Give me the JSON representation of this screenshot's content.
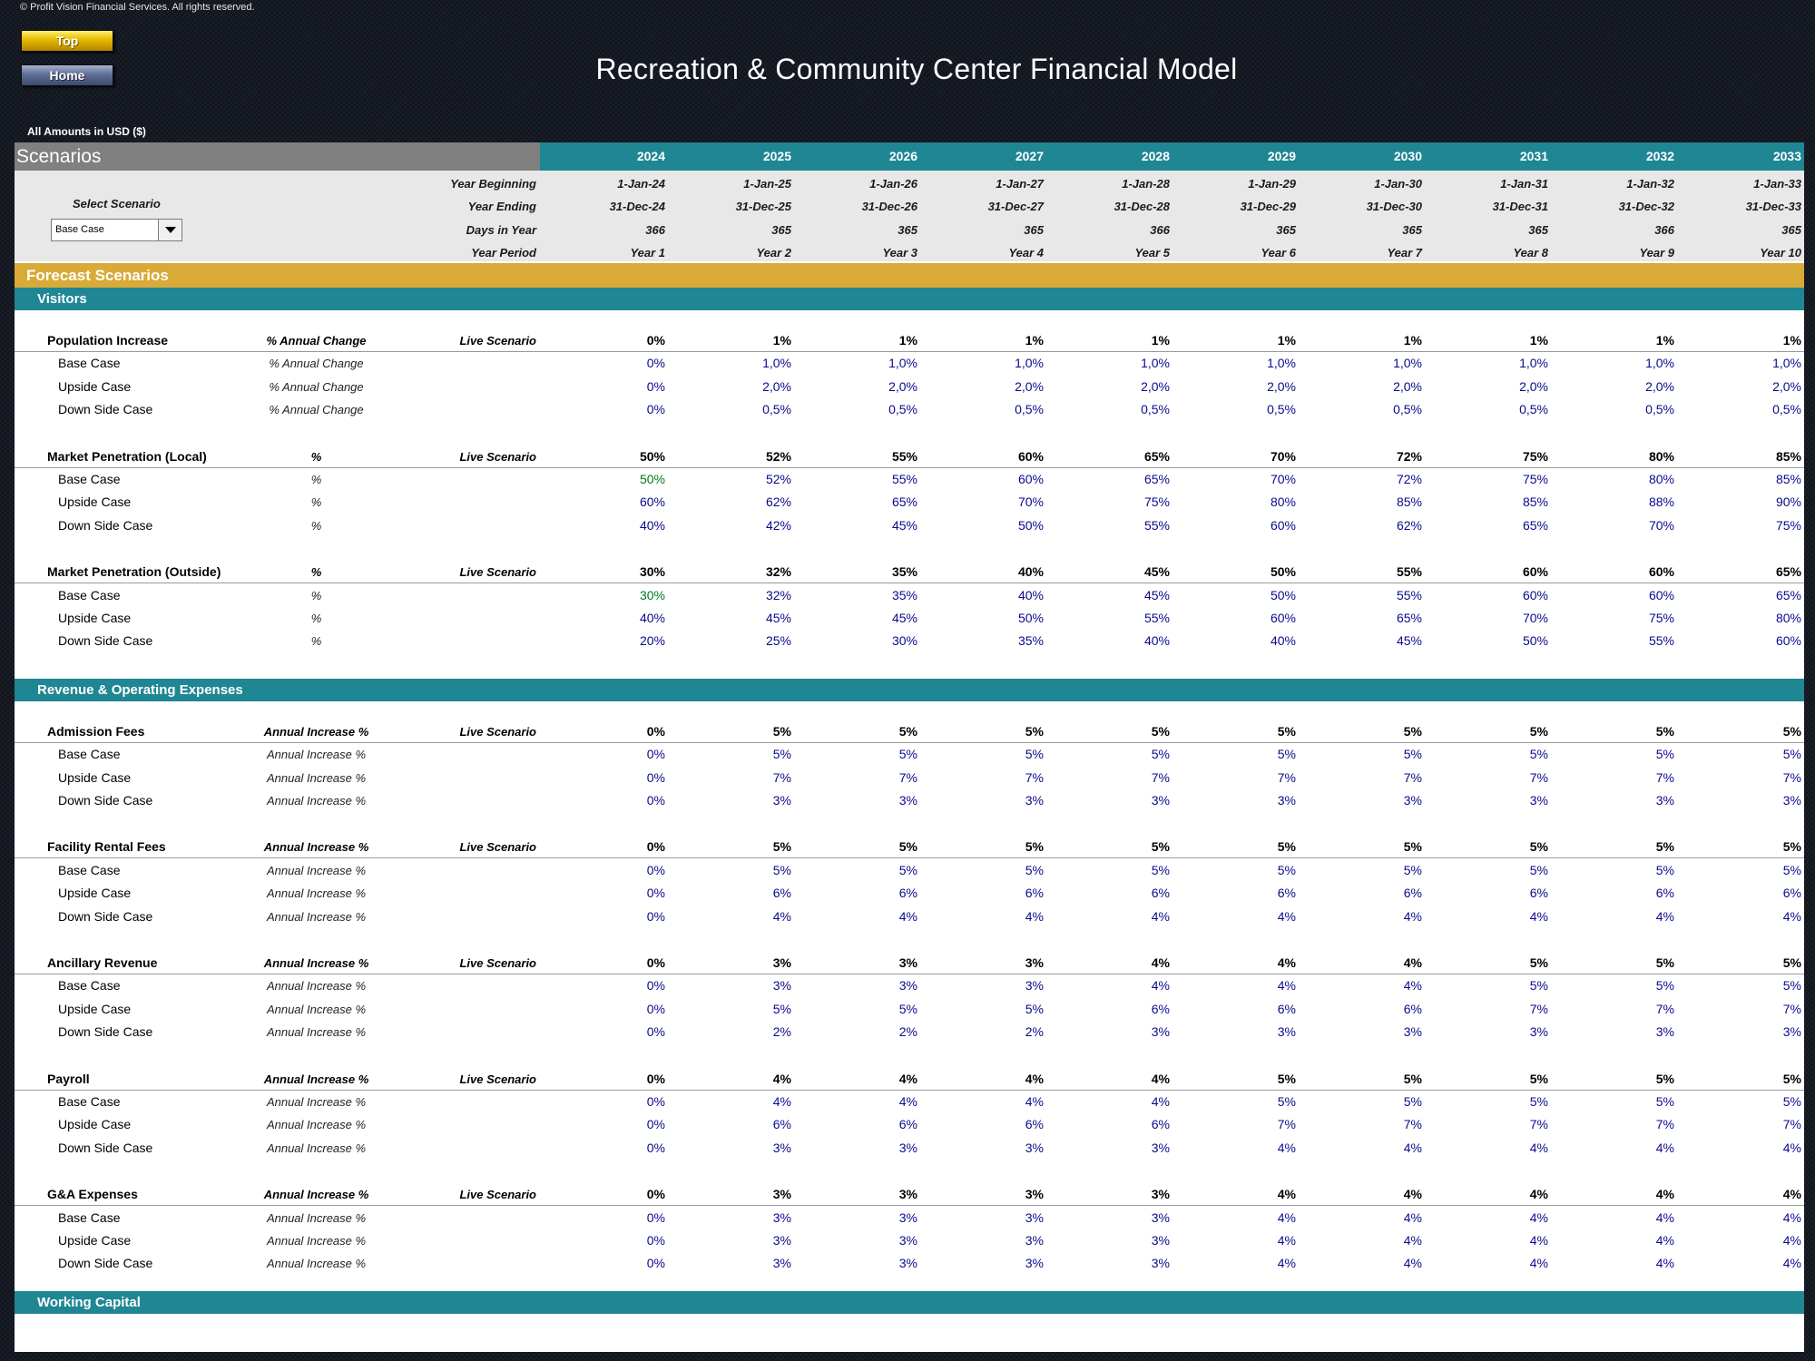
{
  "copyright": "© Profit Vision Financial Services. All rights reserved.",
  "nav": {
    "top_label": "Top",
    "home_label": "Home"
  },
  "title": "Recreation & Community Center Financial Model",
  "amounts_note": "All Amounts in  USD ($)",
  "scenarios_label": "Scenarios",
  "years": [
    "2024",
    "2025",
    "2026",
    "2027",
    "2028",
    "2029",
    "2030",
    "2031",
    "2032",
    "2033"
  ],
  "info": {
    "select_label": "Select Scenario",
    "selected": "Base Case",
    "rows": [
      {
        "label": "Year Beginning",
        "values": [
          "1-Jan-24",
          "1-Jan-25",
          "1-Jan-26",
          "1-Jan-27",
          "1-Jan-28",
          "1-Jan-29",
          "1-Jan-30",
          "1-Jan-31",
          "1-Jan-32",
          "1-Jan-33"
        ]
      },
      {
        "label": "Year Ending",
        "values": [
          "31-Dec-24",
          "31-Dec-25",
          "31-Dec-26",
          "31-Dec-27",
          "31-Dec-28",
          "31-Dec-29",
          "31-Dec-30",
          "31-Dec-31",
          "31-Dec-32",
          "31-Dec-33"
        ]
      },
      {
        "label": "Days in Year",
        "values": [
          "366",
          "365",
          "365",
          "365",
          "366",
          "365",
          "365",
          "365",
          "366",
          "365"
        ]
      },
      {
        "label": "Year Period",
        "values": [
          "Year 1",
          "Year 2",
          "Year 3",
          "Year 4",
          "Year 5",
          "Year 6",
          "Year 7",
          "Year 8",
          "Year 9",
          "Year 10"
        ]
      }
    ]
  },
  "forecast_label": "Forecast Scenarios",
  "sections": [
    {
      "title": "Visitors",
      "groups": [
        {
          "name": "Population Increase",
          "unit": "% Annual Change",
          "live_label": "Live Scenario",
          "live": [
            "0%",
            "1%",
            "1%",
            "1%",
            "1%",
            "1%",
            "1%",
            "1%",
            "1%",
            "1%"
          ],
          "rows": [
            {
              "name": "Base Case",
              "unit": "% Annual Change",
              "values": [
                "0%",
                "1,0%",
                "1,0%",
                "1,0%",
                "1,0%",
                "1,0%",
                "1,0%",
                "1,0%",
                "1,0%",
                "1,0%"
              ]
            },
            {
              "name": "Upside Case",
              "unit": "% Annual Change",
              "values": [
                "0%",
                "2,0%",
                "2,0%",
                "2,0%",
                "2,0%",
                "2,0%",
                "2,0%",
                "2,0%",
                "2,0%",
                "2,0%"
              ]
            },
            {
              "name": "Down Side Case",
              "unit": "% Annual Change",
              "values": [
                "0%",
                "0,5%",
                "0,5%",
                "0,5%",
                "0,5%",
                "0,5%",
                "0,5%",
                "0,5%",
                "0,5%",
                "0,5%"
              ]
            }
          ]
        },
        {
          "name": "Market Penetration (Local)",
          "unit": "%",
          "live_label": "Live Scenario",
          "live": [
            "50%",
            "52%",
            "55%",
            "60%",
            "65%",
            "70%",
            "72%",
            "75%",
            "80%",
            "85%"
          ],
          "rows": [
            {
              "name": "Base Case",
              "unit": "%",
              "first_green": true,
              "values": [
                "50%",
                "52%",
                "55%",
                "60%",
                "65%",
                "70%",
                "72%",
                "75%",
                "80%",
                "85%"
              ]
            },
            {
              "name": "Upside Case",
              "unit": "%",
              "values": [
                "60%",
                "62%",
                "65%",
                "70%",
                "75%",
                "80%",
                "85%",
                "85%",
                "88%",
                "90%"
              ]
            },
            {
              "name": "Down Side Case",
              "unit": "%",
              "values": [
                "40%",
                "42%",
                "45%",
                "50%",
                "55%",
                "60%",
                "62%",
                "65%",
                "70%",
                "75%"
              ]
            }
          ]
        },
        {
          "name": "Market Penetration (Outside)",
          "unit": "%",
          "live_label": "Live Scenario",
          "live": [
            "30%",
            "32%",
            "35%",
            "40%",
            "45%",
            "50%",
            "55%",
            "60%",
            "60%",
            "65%"
          ],
          "rows": [
            {
              "name": "Base Case",
              "unit": "%",
              "first_green": true,
              "values": [
                "30%",
                "32%",
                "35%",
                "40%",
                "45%",
                "50%",
                "55%",
                "60%",
                "60%",
                "65%"
              ]
            },
            {
              "name": "Upside Case",
              "unit": "%",
              "values": [
                "40%",
                "45%",
                "45%",
                "50%",
                "55%",
                "60%",
                "65%",
                "70%",
                "75%",
                "80%"
              ]
            },
            {
              "name": "Down Side Case",
              "unit": "%",
              "values": [
                "20%",
                "25%",
                "30%",
                "35%",
                "40%",
                "40%",
                "45%",
                "50%",
                "55%",
                "60%"
              ]
            }
          ]
        }
      ]
    },
    {
      "title": "Revenue & Operating Expenses",
      "groups": [
        {
          "name": "Admission Fees",
          "unit": "Annual Increase %",
          "live_label": "Live Scenario",
          "live": [
            "0%",
            "5%",
            "5%",
            "5%",
            "5%",
            "5%",
            "5%",
            "5%",
            "5%",
            "5%"
          ],
          "rows": [
            {
              "name": "Base Case",
              "unit": "Annual Increase %",
              "values": [
                "0%",
                "5%",
                "5%",
                "5%",
                "5%",
                "5%",
                "5%",
                "5%",
                "5%",
                "5%"
              ]
            },
            {
              "name": "Upside Case",
              "unit": "Annual Increase %",
              "values": [
                "0%",
                "7%",
                "7%",
                "7%",
                "7%",
                "7%",
                "7%",
                "7%",
                "7%",
                "7%"
              ]
            },
            {
              "name": "Down Side Case",
              "unit": "Annual Increase %",
              "values": [
                "0%",
                "3%",
                "3%",
                "3%",
                "3%",
                "3%",
                "3%",
                "3%",
                "3%",
                "3%"
              ]
            }
          ]
        },
        {
          "name": "Facility Rental Fees",
          "unit": "Annual Increase %",
          "live_label": "Live Scenario",
          "live": [
            "0%",
            "5%",
            "5%",
            "5%",
            "5%",
            "5%",
            "5%",
            "5%",
            "5%",
            "5%"
          ],
          "rows": [
            {
              "name": "Base Case",
              "unit": "Annual Increase %",
              "values": [
                "0%",
                "5%",
                "5%",
                "5%",
                "5%",
                "5%",
                "5%",
                "5%",
                "5%",
                "5%"
              ]
            },
            {
              "name": "Upside Case",
              "unit": "Annual Increase %",
              "values": [
                "0%",
                "6%",
                "6%",
                "6%",
                "6%",
                "6%",
                "6%",
                "6%",
                "6%",
                "6%"
              ]
            },
            {
              "name": "Down Side Case",
              "unit": "Annual Increase %",
              "values": [
                "0%",
                "4%",
                "4%",
                "4%",
                "4%",
                "4%",
                "4%",
                "4%",
                "4%",
                "4%"
              ]
            }
          ]
        },
        {
          "name": "Ancillary Revenue",
          "unit": "Annual Increase %",
          "live_label": "Live Scenario",
          "live": [
            "0%",
            "3%",
            "3%",
            "3%",
            "4%",
            "4%",
            "4%",
            "5%",
            "5%",
            "5%"
          ],
          "rows": [
            {
              "name": "Base Case",
              "unit": "Annual Increase %",
              "values": [
                "0%",
                "3%",
                "3%",
                "3%",
                "4%",
                "4%",
                "4%",
                "5%",
                "5%",
                "5%"
              ]
            },
            {
              "name": "Upside Case",
              "unit": "Annual Increase %",
              "values": [
                "0%",
                "5%",
                "5%",
                "5%",
                "6%",
                "6%",
                "6%",
                "7%",
                "7%",
                "7%"
              ]
            },
            {
              "name": "Down Side Case",
              "unit": "Annual Increase %",
              "values": [
                "0%",
                "2%",
                "2%",
                "2%",
                "3%",
                "3%",
                "3%",
                "3%",
                "3%",
                "3%"
              ]
            }
          ]
        },
        {
          "name": "Payroll",
          "unit": "Annual Increase %",
          "live_label": "Live Scenario",
          "live": [
            "0%",
            "4%",
            "4%",
            "4%",
            "4%",
            "5%",
            "5%",
            "5%",
            "5%",
            "5%"
          ],
          "rows": [
            {
              "name": "Base Case",
              "unit": "Annual Increase %",
              "values": [
                "0%",
                "4%",
                "4%",
                "4%",
                "4%",
                "5%",
                "5%",
                "5%",
                "5%",
                "5%"
              ]
            },
            {
              "name": "Upside Case",
              "unit": "Annual Increase %",
              "values": [
                "0%",
                "6%",
                "6%",
                "6%",
                "6%",
                "7%",
                "7%",
                "7%",
                "7%",
                "7%"
              ]
            },
            {
              "name": "Down Side Case",
              "unit": "Annual Increase %",
              "values": [
                "0%",
                "3%",
                "3%",
                "3%",
                "3%",
                "4%",
                "4%",
                "4%",
                "4%",
                "4%"
              ]
            }
          ]
        },
        {
          "name": "G&A Expenses",
          "unit": "Annual Increase %",
          "live_label": "Live Scenario",
          "live": [
            "0%",
            "3%",
            "3%",
            "3%",
            "3%",
            "4%",
            "4%",
            "4%",
            "4%",
            "4%"
          ],
          "rows": [
            {
              "name": "Base Case",
              "unit": "Annual Increase %",
              "values": [
                "0%",
                "3%",
                "3%",
                "3%",
                "3%",
                "4%",
                "4%",
                "4%",
                "4%",
                "4%"
              ]
            },
            {
              "name": "Upside Case",
              "unit": "Annual Increase %",
              "values": [
                "0%",
                "3%",
                "3%",
                "3%",
                "3%",
                "4%",
                "4%",
                "4%",
                "4%",
                "4%"
              ]
            },
            {
              "name": "Down Side Case",
              "unit": "Annual Increase %",
              "values": [
                "0%",
                "3%",
                "3%",
                "3%",
                "3%",
                "4%",
                "4%",
                "4%",
                "4%",
                "4%"
              ]
            }
          ]
        }
      ]
    }
  ],
  "working_capital_label": "Working Capital"
}
